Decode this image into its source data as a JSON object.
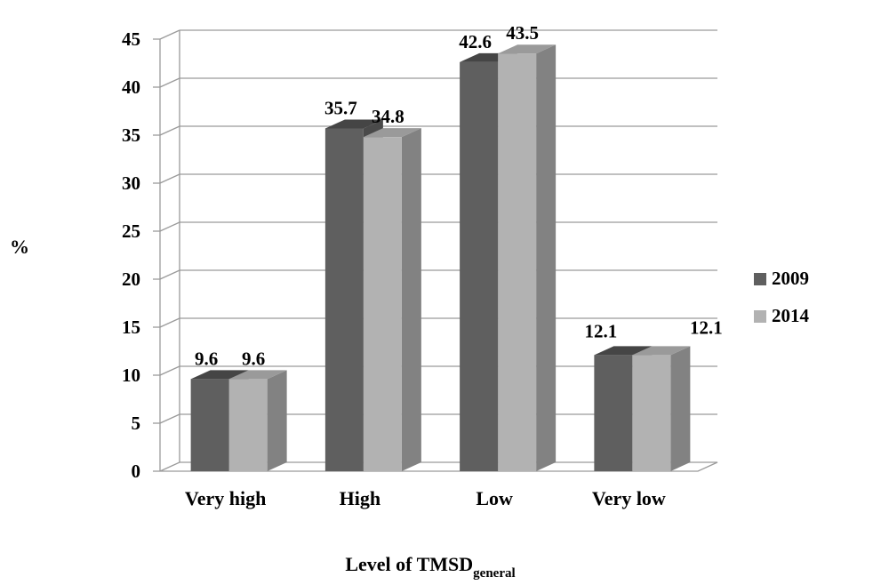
{
  "chart_data": {
    "type": "bar",
    "style": "3d-clustered-column",
    "categories": [
      "Very high",
      "High",
      "Low",
      "Very low"
    ],
    "series": [
      {
        "name": "2009",
        "values": [
          9.6,
          35.7,
          42.6,
          12.1
        ],
        "color": "#5f5f5f",
        "top_color": "#454545",
        "side_color": "#4a4a4a"
      },
      {
        "name": "2014",
        "values": [
          9.6,
          34.8,
          43.5,
          12.1
        ],
        "color": "#b2b2b2",
        "top_color": "#9a9a9a",
        "side_color": "#828282"
      }
    ],
    "data_labels": [
      [
        "9.6",
        "35.7",
        "42.6",
        "12.1"
      ],
      [
        "9.6",
        "34.8",
        "43.5",
        "12.1"
      ]
    ],
    "ylabel": "%",
    "xlabel": {
      "main": "Level of TMSD",
      "subscript": "general"
    },
    "ylim": [
      0,
      45
    ],
    "yticks": [
      0,
      5,
      10,
      15,
      20,
      25,
      30,
      35,
      40,
      45
    ],
    "grid": true,
    "legend_position": "right"
  }
}
